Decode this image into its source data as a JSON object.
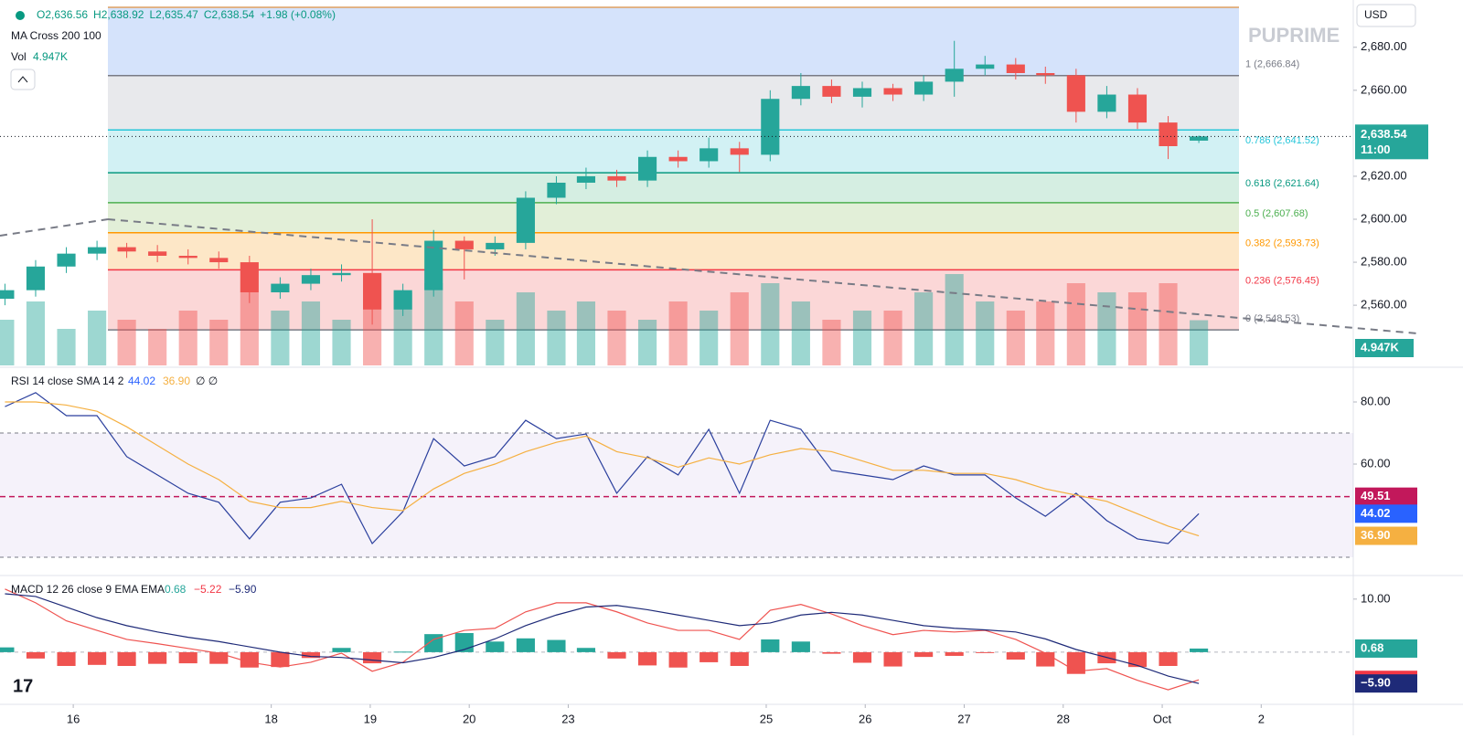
{
  "header": {
    "ohlc": [
      "O2,636.56",
      "H2,638.92",
      "L2,635.47",
      "C2,638.54",
      "+1.98 (+0.08%)"
    ],
    "indicator": "MA Cross 200 100",
    "vol_label": "Vol",
    "currency": "USD",
    "brand": "PUPRIME"
  },
  "chart_data": [
    {
      "type": "candlestick",
      "x": [
        -0.69,
        -0.38,
        -0.07,
        0.24,
        0.54,
        0.85,
        1.16,
        1.47,
        1.78,
        2.09,
        2.4,
        2.71,
        3.02,
        3.33,
        3.64,
        3.95,
        4.26,
        4.57,
        4.88,
        5.18,
        5.49,
        5.8,
        6.11,
        6.42,
        6.73,
        7.04,
        7.35,
        7.66,
        7.97,
        8.28,
        8.59,
        8.9,
        9.21,
        9.52,
        9.82,
        10.13,
        10.44,
        10.75,
        11.06,
        11.37
      ],
      "open": [
        2563,
        2567,
        2578,
        2584,
        2587,
        2585,
        2583,
        2582,
        2580,
        2566,
        2570,
        2574,
        2575,
        2558,
        2567,
        2590,
        2586,
        2589,
        2610,
        2617,
        2620,
        2618,
        2629,
        2627,
        2633,
        2630,
        2656,
        2662,
        2657,
        2661,
        2658,
        2664,
        2670,
        2672,
        2668,
        2667,
        2650,
        2658,
        2645,
        2636.56
      ],
      "high": [
        2570,
        2581,
        2587,
        2590,
        2589,
        2588,
        2586,
        2585,
        2583,
        2573,
        2577,
        2579,
        2600,
        2570,
        2595,
        2592,
        2592,
        2613,
        2620,
        2624,
        2623,
        2632,
        2632,
        2638,
        2636,
        2660,
        2668,
        2665,
        2664,
        2663,
        2667,
        2683,
        2676,
        2675,
        2671,
        2670,
        2662,
        2661,
        2648,
        2638.92
      ],
      "low": [
        2560,
        2564,
        2575,
        2581,
        2582,
        2580,
        2579,
        2577,
        2561,
        2563,
        2567,
        2571,
        2551,
        2555,
        2564,
        2572,
        2583,
        2586,
        2607,
        2614,
        2615,
        2615,
        2624,
        2624,
        2622,
        2627,
        2653,
        2654,
        2652,
        2655,
        2655,
        2657,
        2667,
        2665,
        2663,
        2645,
        2647,
        2642,
        2628,
        2635.47
      ],
      "close": [
        2567,
        2578,
        2584,
        2587,
        2585,
        2583,
        2582,
        2580,
        2566,
        2570,
        2574,
        2575,
        2558,
        2567,
        2590,
        2586,
        2589,
        2610,
        2617,
        2620,
        2618,
        2629,
        2627,
        2633,
        2630,
        2656,
        2662,
        2657,
        2661,
        2658,
        2664,
        2670,
        2672,
        2668,
        2667,
        2650,
        2658,
        2645,
        2634,
        2638.54
      ],
      "volume": [
        5,
        7,
        4,
        6,
        5,
        4,
        6,
        5,
        8,
        6,
        7,
        5,
        10,
        8,
        9,
        7,
        5,
        8,
        6,
        7,
        6,
        5,
        7,
        6,
        8,
        9,
        7,
        5,
        6,
        6,
        8,
        10,
        7,
        6,
        7,
        9,
        8,
        8,
        9,
        4.947
      ],
      "up_color": "#26a69a",
      "down_color": "#ef5350",
      "xlim": [
        -0.74,
        12.93
      ],
      "xticks": [
        {
          "value": 0,
          "label": "16"
        },
        {
          "value": 2,
          "label": "18"
        },
        {
          "value": 3,
          "label": "19"
        },
        {
          "value": 4,
          "label": "20"
        },
        {
          "value": 5,
          "label": "23"
        },
        {
          "value": 7,
          "label": "25"
        },
        {
          "value": 8,
          "label": "26"
        },
        {
          "value": 9,
          "label": "27"
        },
        {
          "value": 10,
          "label": "28"
        },
        {
          "value": 11,
          "label": "Oct"
        },
        {
          "value": 12,
          "label": "2"
        }
      ],
      "ylim": [
        2532,
        2702
      ],
      "yticks": [
        {
          "value": 2680,
          "label": "2,680.00"
        },
        {
          "value": 2660,
          "label": "2,660.00"
        },
        {
          "value": 2620,
          "label": "2,620.00"
        },
        {
          "value": 2600,
          "label": "2,600.00"
        },
        {
          "value": 2580,
          "label": "2,580.00"
        },
        {
          "value": 2560,
          "label": "2,560.00"
        }
      ],
      "volume_ylim": [
        0,
        40
      ],
      "fib_levels": [
        {
          "value": 2666.84,
          "label": "1 (2,666.84)",
          "color": "#787b86",
          "fill": "#e8e9ec"
        },
        {
          "value": 2641.52,
          "label": "0.786 (2,641.52)",
          "color": "#26c6da",
          "fill": "#d2f1f4"
        },
        {
          "value": 2621.64,
          "label": "0.618 (2,621.64)",
          "color": "#089981",
          "fill": "#d5eee2"
        },
        {
          "value": 2607.68,
          "label": "0.5 (2,607.68)",
          "color": "#4caf50",
          "fill": "#e2efd8"
        },
        {
          "value": 2593.73,
          "label": "0.382 (2,593.73)",
          "color": "#ff9800",
          "fill": "#fde7c7"
        },
        {
          "value": 2576.45,
          "label": "0.236 (2,576.45)",
          "color": "#f23645",
          "fill": "#fbd7d7"
        },
        {
          "value": 2548.53,
          "label": "0 (2,548.53)",
          "color": "#787b86",
          "fill": "#ffffff"
        }
      ],
      "last_price": {
        "value": 2638.54,
        "label": "2,638.54"
      },
      "countdown": "11:00",
      "volume_tag": {
        "value": 4.947,
        "label": "4.947K"
      }
    },
    {
      "type": "line",
      "title": "RSI 14 close SMA 14 2",
      "extra": "∅ ∅",
      "series": [
        {
          "name": "RSI",
          "color": "#2a3f9d",
          "values": [
            78.5,
            83,
            75.6,
            75.6,
            62.4,
            56.5,
            50.6,
            47.7,
            35.9,
            47.7,
            49.1,
            53.5,
            34.4,
            44.7,
            68.2,
            59.4,
            62.4,
            74.1,
            68.2,
            69.7,
            50.6,
            62.4,
            56.5,
            71.2,
            50.6,
            74.1,
            71.2,
            58,
            56.5,
            55,
            59.4,
            56.5,
            56.5,
            49.1,
            43.2,
            50.6,
            41.8,
            35.9,
            34.4,
            44.02
          ]
        },
        {
          "name": "SMA",
          "color": "#f5b041",
          "values": [
            80,
            80,
            79,
            77,
            72,
            66,
            60,
            55,
            48,
            46,
            46,
            48,
            46,
            45,
            52,
            57,
            60,
            64,
            67,
            69,
            64,
            62,
            59,
            62,
            60,
            63,
            65,
            64,
            61,
            58,
            58,
            57,
            57,
            55,
            52,
            50,
            48,
            44,
            40,
            36.9
          ]
        }
      ],
      "ylim": [
        24.7,
        90.3
      ],
      "yticks": [
        {
          "value": 80,
          "label": "80.00"
        },
        {
          "value": 60,
          "label": "60.00"
        }
      ],
      "bands": [
        30,
        70
      ],
      "band_color": "#7e57c2",
      "level": {
        "value": 49.51,
        "label": "49.51",
        "color": "#c2185b"
      },
      "tags": [
        {
          "value": 44.02,
          "label": "44.02",
          "color": "#2962ff"
        },
        {
          "value": 36.9,
          "label": "36.90",
          "color": "#f5b041"
        }
      ]
    },
    {
      "type": "macd",
      "title": "MACD 12 26 close 9 EMA EMA",
      "series": [
        {
          "name": "histogram",
          "color": "#26a69a",
          "down_color": "#ef5350",
          "values": [
            0.9,
            -1.2,
            -2.6,
            -2.4,
            -2.6,
            -2.2,
            -2.1,
            -2.2,
            -2.9,
            -2.8,
            -1.1,
            0.8,
            -2.1,
            0.1,
            3.4,
            3.6,
            2,
            2.6,
            2.3,
            0.8,
            -1.2,
            -2.5,
            -2.9,
            -1.9,
            -2.6,
            2.4,
            2,
            -0.3,
            -2,
            -2.7,
            -0.9,
            -0.7,
            -0.1,
            -1.4,
            -2.7,
            -4.1,
            -2.1,
            -2.8,
            -2.6,
            0.68
          ]
        },
        {
          "name": "MACD",
          "color": "#ef5350",
          "values": [
            11.9,
            9.3,
            5.9,
            4.1,
            2.4,
            1.6,
            0.7,
            -0.2,
            -1.9,
            -2.8,
            -1.9,
            -0.2,
            -3.6,
            -1.9,
            2.4,
            4.1,
            4.5,
            7.6,
            9.3,
            9.3,
            7.6,
            5.5,
            4.1,
            4.1,
            2.4,
            7.9,
            9,
            7.2,
            5,
            3.3,
            4.1,
            3.8,
            4.1,
            2.4,
            -0.2,
            -3.6,
            -3.1,
            -5.3,
            -7.1,
            -5.22
          ]
        },
        {
          "name": "Signal",
          "color": "#1e2a78",
          "values": [
            11,
            10.5,
            8.5,
            6.5,
            5,
            3.8,
            2.8,
            2,
            1,
            0,
            -0.8,
            -1,
            -1.5,
            -2,
            -1,
            0.5,
            2.5,
            5,
            7,
            8.5,
            8.8,
            8,
            7,
            6,
            5,
            5.5,
            7,
            7.5,
            7,
            6,
            5,
            4.5,
            4.2,
            3.8,
            2.5,
            0.5,
            -1,
            -2.5,
            -4.5,
            -5.9
          ]
        }
      ],
      "ylim": [
        -9.66,
        14.1
      ],
      "yticks": [
        {
          "value": 10,
          "label": "10.00"
        }
      ],
      "zero_line": true,
      "tags": [
        {
          "value": 0.68,
          "label": "0.68",
          "color": "#26a69a"
        },
        {
          "value": -5.22,
          "label": "−5.22",
          "color": "#f23645"
        },
        {
          "value": -5.9,
          "label": "−5.90",
          "color": "#1e2a78"
        }
      ]
    }
  ]
}
